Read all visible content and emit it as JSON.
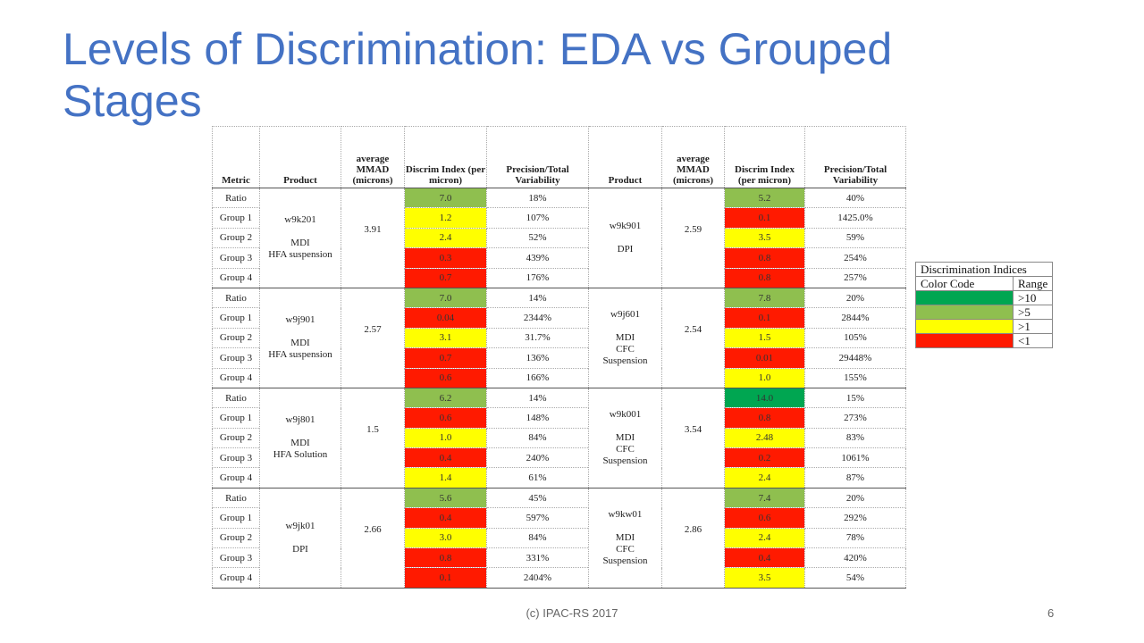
{
  "title": "Levels of Discrimination: EDA vs Grouped Stages",
  "footer": "(c) IPAC-RS 2017",
  "page_number": "6",
  "colors": {
    "dark_green": "#00a651",
    "green": "#8fbf4f",
    "yellow": "#ffff00",
    "red": "#ff1a00"
  },
  "table": {
    "headers": [
      "Metric",
      "Product",
      "average MMAD (microns)",
      "Discrim Index (per micron)",
      "Precision/Total Variability",
      "Product",
      "average MMAD (microns)",
      "Discrim Index (per micron)",
      "Precision/Total Variability"
    ],
    "metrics": [
      "Ratio",
      "Group 1",
      "Group 2",
      "Group 3",
      "Group 4"
    ],
    "blocks": [
      {
        "left": {
          "product": [
            "w9k201",
            "MDI",
            "HFA suspension"
          ],
          "mmad": "3.91",
          "rows": [
            [
              "7.0",
              "green",
              "18%"
            ],
            [
              "1.2",
              "yellow",
              "107%"
            ],
            [
              "2.4",
              "yellow",
              "52%"
            ],
            [
              "0.3",
              "red",
              "439%"
            ],
            [
              "0.7",
              "red",
              "176%"
            ]
          ]
        },
        "right": {
          "product": [
            "w9k901",
            "DPI"
          ],
          "mmad": "2.59",
          "rows": [
            [
              "5.2",
              "green",
              "40%"
            ],
            [
              "0.1",
              "red",
              "1425.0%"
            ],
            [
              "3.5",
              "yellow",
              "59%"
            ],
            [
              "0.8",
              "red",
              "254%"
            ],
            [
              "0.8",
              "red",
              "257%"
            ]
          ]
        }
      },
      {
        "left": {
          "product": [
            "w9j901",
            "MDI",
            "HFA suspension"
          ],
          "mmad": "2.57",
          "rows": [
            [
              "7.0",
              "green",
              "14%"
            ],
            [
              "0.04",
              "red",
              "2344%"
            ],
            [
              "3.1",
              "yellow",
              "31.7%"
            ],
            [
              "0.7",
              "red",
              "136%"
            ],
            [
              "0.6",
              "red",
              "166%"
            ]
          ]
        },
        "right": {
          "product": [
            "w9j601",
            "MDI",
            "CFC",
            "Suspension"
          ],
          "mmad": "2.54",
          "rows": [
            [
              "7.8",
              "green",
              "20%"
            ],
            [
              "0.1",
              "red",
              "2844%"
            ],
            [
              "1.5",
              "yellow",
              "105%"
            ],
            [
              "0.01",
              "red",
              "29448%"
            ],
            [
              "1.0",
              "yellow",
              "155%"
            ]
          ]
        }
      },
      {
        "left": {
          "product": [
            "w9j801",
            "MDI",
            "HFA Solution"
          ],
          "mmad": "1.5",
          "rows": [
            [
              "6.2",
              "green",
              "14%"
            ],
            [
              "0.6",
              "red",
              "148%"
            ],
            [
              "1.0",
              "yellow",
              "84%"
            ],
            [
              "0.4",
              "red",
              "240%"
            ],
            [
              "1.4",
              "yellow",
              "61%"
            ]
          ]
        },
        "right": {
          "product": [
            "w9k001",
            "MDI",
            "CFC",
            "Suspension"
          ],
          "mmad": "3.54",
          "rows": [
            [
              "14.0",
              "dark_green",
              "15%"
            ],
            [
              "0.8",
              "red",
              "273%"
            ],
            [
              "2.48",
              "yellow",
              "83%"
            ],
            [
              "0.2",
              "red",
              "1061%"
            ],
            [
              "2.4",
              "yellow",
              "87%"
            ]
          ]
        }
      },
      {
        "left": {
          "product": [
            "w9jk01",
            "DPI"
          ],
          "mmad": "2.66",
          "rows": [
            [
              "5.6",
              "green",
              "45%"
            ],
            [
              "0.4",
              "red",
              "597%"
            ],
            [
              "3.0",
              "yellow",
              "84%"
            ],
            [
              "0.8",
              "red",
              "331%"
            ],
            [
              "0.1",
              "red",
              "2404%"
            ]
          ]
        },
        "right": {
          "product": [
            "w9kw01",
            "MDI",
            "CFC",
            "Suspension"
          ],
          "mmad": "2.86",
          "rows": [
            [
              "7.4",
              "green",
              "20%"
            ],
            [
              "0.6",
              "red",
              "292%"
            ],
            [
              "2.4",
              "yellow",
              "78%"
            ],
            [
              "0.4",
              "red",
              "420%"
            ],
            [
              "3.5",
              "yellow",
              "54%"
            ]
          ]
        }
      }
    ]
  },
  "legend": {
    "title": "Discrimination Indices",
    "headers": [
      "Color Code",
      "Range"
    ],
    "rows": [
      {
        "color": "dark_green",
        "range": ">10"
      },
      {
        "color": "green",
        "range": ">5"
      },
      {
        "color": "yellow",
        "range": ">1"
      },
      {
        "color": "red",
        "range": "<1"
      }
    ]
  }
}
